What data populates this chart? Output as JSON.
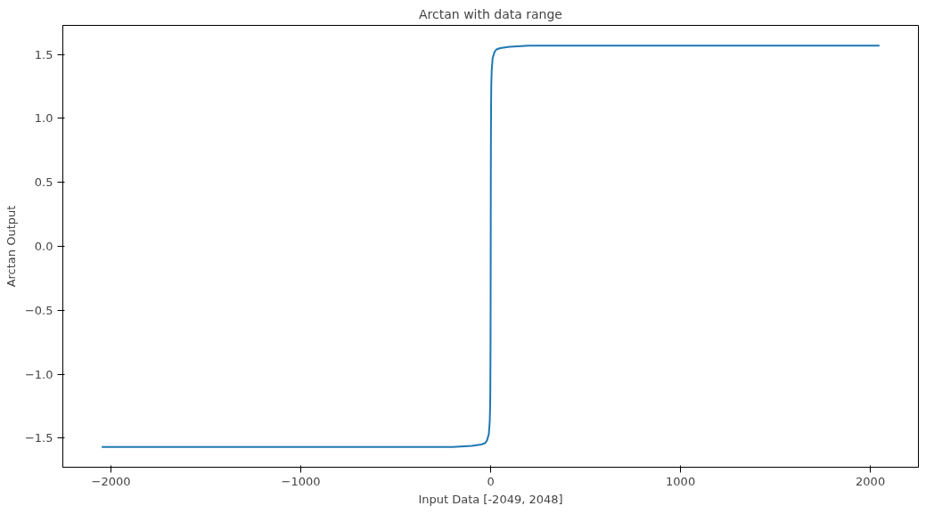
{
  "chart_data": {
    "type": "line",
    "title": "Arctan with data range",
    "xlabel": "Input Data [-2049, 2048]",
    "ylabel": "Arctan Output",
    "x": [
      -2049,
      -1000,
      -500,
      -200,
      -100,
      -50,
      -30,
      -20,
      -10,
      -5,
      -3,
      -2,
      -1,
      -0.5,
      0,
      0.5,
      1,
      2,
      3,
      5,
      10,
      20,
      30,
      50,
      100,
      200,
      500,
      1000,
      2048
    ],
    "series": [
      {
        "color": "#1f77b4",
        "values": [
          -1.57,
          -1.57,
          -1.57,
          -1.57,
          -1.56,
          -1.55,
          -1.54,
          -1.52,
          -1.47,
          -1.37,
          -1.25,
          -1.11,
          -0.79,
          -0.46,
          0,
          0.46,
          0.79,
          1.11,
          1.25,
          1.37,
          1.47,
          1.52,
          1.54,
          1.55,
          1.56,
          1.57,
          1.57,
          1.57,
          1.57
        ]
      }
    ],
    "xlim": [
      -2254,
      2253
    ],
    "ylim": [
      -1.728,
      1.728
    ],
    "xticks": [
      {
        "value": -2000,
        "label": "−2000"
      },
      {
        "value": -1000,
        "label": "−1000"
      },
      0,
      1000,
      2000
    ],
    "yticks": [
      {
        "value": -1.5,
        "label": "−1.5"
      },
      {
        "value": -1.0,
        "label": "−1.0"
      },
      {
        "value": -0.5,
        "label": "−0.5"
      },
      {
        "value": 0.0,
        "label": "0.0"
      },
      {
        "value": 0.5,
        "label": "0.5"
      },
      {
        "value": 1.0,
        "label": "1.0"
      },
      {
        "value": 1.5,
        "label": "1.5"
      }
    ],
    "grid": false,
    "line_style": "solid"
  }
}
